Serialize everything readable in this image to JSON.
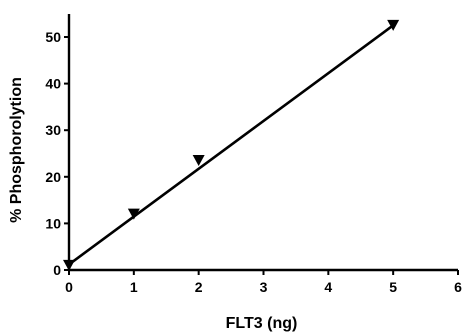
{
  "chart_data": {
    "type": "scatter",
    "title": "",
    "xlabel": "FLT3 (ng)",
    "ylabel": "% Phosphorolytion",
    "xlim": [
      0,
      6
    ],
    "ylim": [
      0,
      55
    ],
    "x_ticks": [
      "0",
      "1",
      "2",
      "3",
      "4",
      "5",
      "6"
    ],
    "y_ticks": [
      "0",
      "10",
      "20",
      "30",
      "40",
      "50"
    ],
    "grid": false,
    "marker": "inverted-triangle",
    "series": [
      {
        "x": [
          0,
          1,
          2,
          5
        ],
        "y": [
          1,
          12,
          23.5,
          52.5
        ]
      }
    ],
    "fit_line": {
      "x": [
        0,
        5
      ],
      "y": [
        1.2,
        52.5
      ]
    }
  }
}
